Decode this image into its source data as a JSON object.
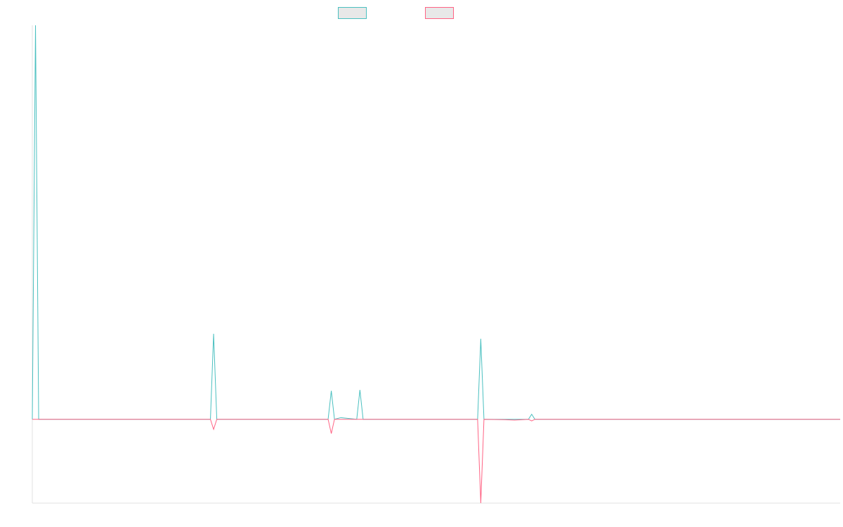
{
  "chart_data": {
    "type": "line",
    "title": "",
    "xlabel": "",
    "ylabel": "",
    "ylim": [
      -1,
      4.7
    ],
    "xlim": [
      0,
      127
    ],
    "grid": false,
    "legend_position": "top-center",
    "x": [
      0,
      0.5,
      1,
      28,
      28.5,
      29,
      46.5,
      47,
      47.5,
      48.5,
      51,
      51.5,
      52,
      70,
      70.5,
      71,
      74.3,
      75.8,
      78,
      78.5,
      79,
      127
    ],
    "series": [
      {
        "color": "#4bc0c0",
        "values": [
          0,
          4.7,
          0,
          0,
          1.02,
          0,
          0,
          0.34,
          0,
          0.02,
          0,
          0.35,
          0,
          0,
          0.96,
          0,
          0,
          0,
          0,
          0.06,
          0,
          0
        ]
      },
      {
        "color": "#ff6384",
        "values": [
          0,
          0,
          0,
          0,
          -0.12,
          0,
          0,
          -0.17,
          0,
          0,
          0,
          0,
          0,
          0,
          -1.0,
          0,
          -0.005,
          -0.01,
          0,
          -0.02,
          0,
          0
        ]
      }
    ]
  },
  "legend": {
    "swatch_fill": "#e8e8e8"
  },
  "axis": {
    "color": "#e0e0e0"
  }
}
